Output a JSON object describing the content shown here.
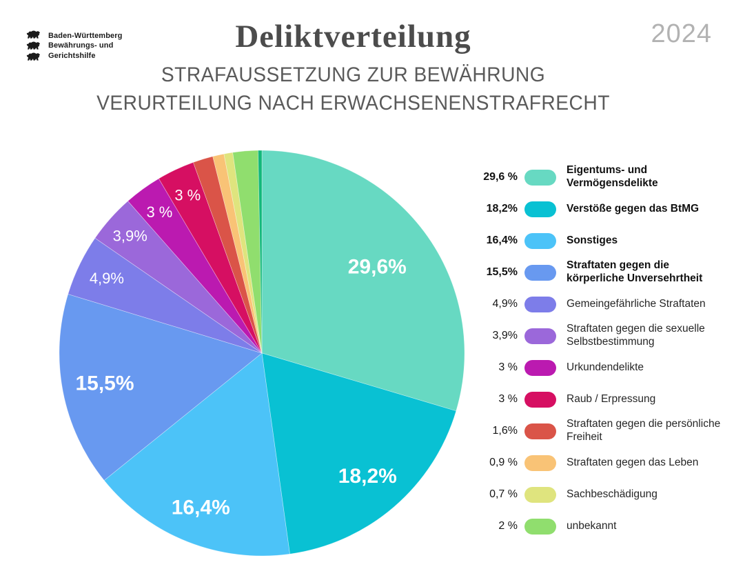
{
  "header": {
    "logo": {
      "lines": [
        "Baden-Württemberg",
        "Bewährungs- und",
        "Gerichtshilfe"
      ]
    },
    "title": "Deliktverteilung",
    "subtitle_line1": "STRAFAUSSETZUNG ZUR BEWÄHRUNG",
    "subtitle_line2": "VERURTEILUNG NACH ERWACHSENENSTRAFRECHT",
    "year": "2024"
  },
  "chart_data": {
    "type": "pie",
    "title": "Deliktverteilung",
    "subtitle": "Strafaussetzung zur Bewährung — Verurteilung nach Erwachsenenstrafrecht",
    "year": "2024",
    "unit": "%",
    "start_angle_deg": 0,
    "direction": "clockwise",
    "legend_position": "right",
    "slices": [
      {
        "label": "Eigentums- und Vermögensdelikte",
        "value": 29.6,
        "legend_pct": "29,6 %",
        "pie_label": "29,6%",
        "color": "#67d9c2",
        "bold": true,
        "label_r": 0.71,
        "label_size": 30,
        "label_weight": 700
      },
      {
        "label": "Verstöße gegen das BtMG",
        "value": 18.2,
        "legend_pct": "18,2%",
        "pie_label": "18,2%",
        "color": "#09c1d3",
        "bold": true,
        "label_r": 0.8,
        "label_size": 30,
        "label_weight": 700
      },
      {
        "label": "Sonstiges",
        "value": 16.4,
        "legend_pct": "16,4%",
        "pie_label": "16,4%",
        "color": "#4cc3f8",
        "bold": true,
        "label_r": 0.82,
        "label_size": 30,
        "label_weight": 700
      },
      {
        "label": "Straftaten gegen die körperliche Unversehrtheit",
        "value": 15.5,
        "legend_pct": "15,5%",
        "pie_label": "15,5%",
        "color": "#6899f0",
        "bold": true,
        "label_r": 0.79,
        "label_size": 30,
        "label_weight": 700
      },
      {
        "label": "Gemeingefährliche Straftaten",
        "value": 4.9,
        "legend_pct": "4,9%",
        "pie_label": "4,9%",
        "color": "#7d7de9",
        "bold": false,
        "label_r": 0.85,
        "label_size": 22,
        "label_weight": 400
      },
      {
        "label": "Straftaten gegen die sexuelle Selbstbestimmung",
        "value": 3.9,
        "legend_pct": "3,9%",
        "pie_label": "3,9%",
        "color": "#9b68da",
        "bold": false,
        "label_r": 0.87,
        "label_size": 22,
        "label_weight": 400
      },
      {
        "label": "Urkundendelikte",
        "value": 3.0,
        "legend_pct": "3 %",
        "pie_label": "3 %",
        "color": "#bb1ab0",
        "bold": false,
        "label_r": 0.86,
        "label_size": 22,
        "label_weight": 400
      },
      {
        "label": "Raub / Erpressung",
        "value": 3.0,
        "legend_pct": "3 %",
        "pie_label": "3 %",
        "color": "#d60f62",
        "bold": false,
        "label_r": 0.86,
        "label_size": 22,
        "label_weight": 400
      },
      {
        "label": "Straftaten gegen die persönliche Freiheit",
        "value": 1.6,
        "legend_pct": "1,6%",
        "pie_label": "",
        "color": "#da5448",
        "bold": false,
        "label_r": 0,
        "label_size": 0,
        "label_weight": 400
      },
      {
        "label": "Straftaten gegen das Leben",
        "value": 0.9,
        "legend_pct": "0,9 %",
        "pie_label": "",
        "color": "#f9c376",
        "bold": false,
        "label_r": 0,
        "label_size": 0,
        "label_weight": 400
      },
      {
        "label": "Sachbeschädigung",
        "value": 0.7,
        "legend_pct": "0,7 %",
        "pie_label": "",
        "color": "#dfe47e",
        "bold": false,
        "label_r": 0,
        "label_size": 0,
        "label_weight": 400
      },
      {
        "label": "unbekannt",
        "value": 2.0,
        "legend_pct": "2 %",
        "pie_label": "",
        "color": "#90de6e",
        "bold": false,
        "label_r": 0,
        "label_size": 0,
        "label_weight": 400
      },
      {
        "label": "",
        "value": 0.3,
        "legend_pct": "",
        "pie_label": "",
        "color": "#12b87a",
        "bold": false,
        "label_r": 0,
        "label_size": 0,
        "label_weight": 400,
        "in_legend": false
      }
    ]
  }
}
